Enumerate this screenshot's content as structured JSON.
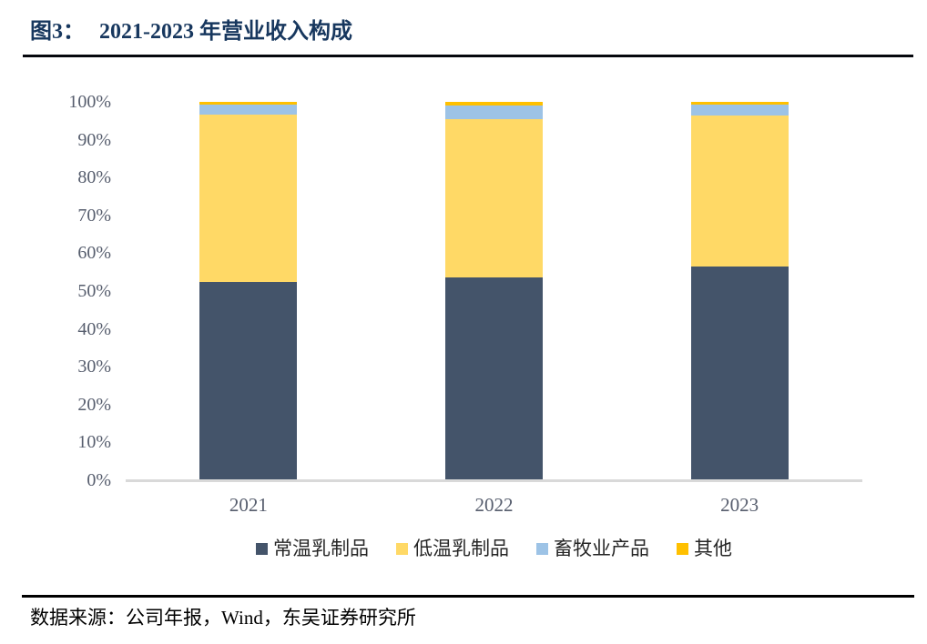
{
  "header": {
    "figure_label": "图3：",
    "title": "2021-2023 年营业收入构成"
  },
  "footer": {
    "source": "数据来源：公司年报，Wind，东吴证券研究所"
  },
  "palette": {
    "title_navy": "#17375E",
    "rule_black": "#05070d",
    "axis_line_gray": "#D9D9D9",
    "tick_label_gray": "#565d6d",
    "series_dark_blue": "#44546A",
    "series_yellow": "#FFD966",
    "series_light_blue": "#9DC3E6",
    "series_orange": "#FFC000"
  },
  "chart_data": {
    "type": "bar",
    "stacked": true,
    "unit": "%",
    "title": "2021-2023 年营业收入构成",
    "xlabel": "",
    "ylabel": "",
    "ylim": [
      0,
      100
    ],
    "ytick_step": 10,
    "ytick_labels": [
      "0%",
      "10%",
      "20%",
      "30%",
      "40%",
      "50%",
      "60%",
      "70%",
      "80%",
      "90%",
      "100%"
    ],
    "grid": false,
    "legend_position": "bottom",
    "categories": [
      "2021",
      "2022",
      "2023"
    ],
    "series": [
      {
        "name": "常温乳制品",
        "color": "#44546A",
        "values": [
          52.3,
          53.5,
          56.4
        ]
      },
      {
        "name": "低温乳制品",
        "color": "#FFD966",
        "values": [
          44.4,
          41.9,
          40.0
        ]
      },
      {
        "name": "畜牧业产品",
        "color": "#9DC3E6",
        "values": [
          2.6,
          3.6,
          2.9
        ]
      },
      {
        "name": "其他",
        "color": "#FFC000",
        "values": [
          0.7,
          1.0,
          0.7
        ]
      }
    ]
  }
}
